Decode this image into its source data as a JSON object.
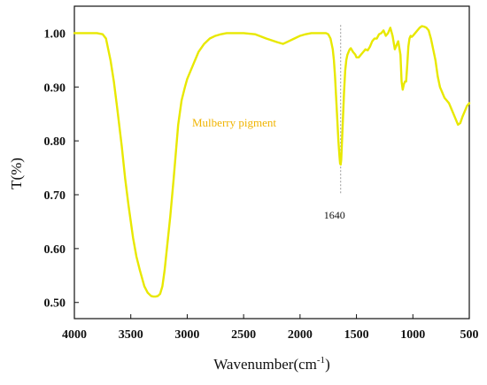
{
  "chart_data": {
    "type": "line",
    "title": "",
    "xlabel": "Wavenumber(cm",
    "xlabel_sup": "-1",
    "xlabel_tail": ")",
    "ylabel": "T(%)",
    "xlim": [
      4000,
      500
    ],
    "ylim": [
      0.47,
      1.05
    ],
    "x_reversed": true,
    "grid": false,
    "x_ticks": [
      4000,
      3500,
      3000,
      2500,
      2000,
      1500,
      1000,
      500
    ],
    "x_tick_labels": [
      "4000",
      "3500",
      "3000",
      "2500",
      "2000",
      "1500",
      "1000",
      "500"
    ],
    "y_ticks": [
      0.5,
      0.6,
      0.7,
      0.8,
      0.9,
      1.0
    ],
    "y_tick_labels": [
      "0.50",
      "0.60",
      "0.70",
      "0.80",
      "0.90",
      "1.00"
    ],
    "series": [
      {
        "name": "Mulberry pigment",
        "color": "#e8e800",
        "label_color": "#f0b400",
        "x": [
          4000,
          3900,
          3800,
          3750,
          3720,
          3700,
          3680,
          3650,
          3620,
          3580,
          3550,
          3520,
          3500,
          3480,
          3450,
          3420,
          3400,
          3380,
          3350,
          3320,
          3300,
          3280,
          3260,
          3240,
          3220,
          3200,
          3180,
          3150,
          3120,
          3100,
          3080,
          3050,
          3020,
          3000,
          2950,
          2900,
          2850,
          2800,
          2750,
          2700,
          2650,
          2600,
          2500,
          2400,
          2300,
          2200,
          2150,
          2100,
          2050,
          2000,
          1950,
          1900,
          1850,
          1800,
          1770,
          1750,
          1730,
          1710,
          1700,
          1690,
          1680,
          1670,
          1660,
          1650,
          1645,
          1640,
          1635,
          1630,
          1620,
          1610,
          1600,
          1590,
          1580,
          1570,
          1560,
          1550,
          1530,
          1510,
          1500,
          1480,
          1460,
          1440,
          1420,
          1400,
          1380,
          1360,
          1340,
          1320,
          1300,
          1280,
          1260,
          1240,
          1220,
          1200,
          1180,
          1160,
          1150,
          1130,
          1110,
          1100,
          1090,
          1080,
          1070,
          1060,
          1050,
          1040,
          1030,
          1020,
          1010,
          1000,
          980,
          960,
          940,
          920,
          900,
          880,
          860,
          840,
          820,
          800,
          780,
          760,
          740,
          720,
          700,
          680,
          660,
          640,
          620,
          600,
          580,
          560,
          540,
          520,
          500
        ],
        "y": [
          1.0,
          1.0,
          1.0,
          0.998,
          0.99,
          0.97,
          0.95,
          0.91,
          0.86,
          0.79,
          0.73,
          0.68,
          0.65,
          0.62,
          0.585,
          0.56,
          0.545,
          0.53,
          0.518,
          0.512,
          0.511,
          0.511,
          0.512,
          0.516,
          0.53,
          0.56,
          0.6,
          0.66,
          0.73,
          0.78,
          0.83,
          0.875,
          0.9,
          0.915,
          0.94,
          0.965,
          0.98,
          0.99,
          0.995,
          0.998,
          1.0,
          1.0,
          1.0,
          0.998,
          0.99,
          0.983,
          0.98,
          0.985,
          0.99,
          0.995,
          0.998,
          1.0,
          1.0,
          1.0,
          1.0,
          0.998,
          0.99,
          0.97,
          0.95,
          0.92,
          0.88,
          0.84,
          0.8,
          0.77,
          0.758,
          0.756,
          0.765,
          0.79,
          0.84,
          0.89,
          0.93,
          0.95,
          0.96,
          0.965,
          0.97,
          0.972,
          0.965,
          0.96,
          0.955,
          0.955,
          0.96,
          0.965,
          0.97,
          0.968,
          0.975,
          0.985,
          0.99,
          0.99,
          0.998,
          1.0,
          1.005,
          0.995,
          1.0,
          1.01,
          0.995,
          0.97,
          0.975,
          0.985,
          0.96,
          0.91,
          0.895,
          0.905,
          0.91,
          0.91,
          0.94,
          0.975,
          0.99,
          0.995,
          0.993,
          0.995,
          1.0,
          1.005,
          1.01,
          1.013,
          1.012,
          1.01,
          1.005,
          0.99,
          0.97,
          0.95,
          0.92,
          0.9,
          0.89,
          0.88,
          0.875,
          0.87,
          0.86,
          0.85,
          0.84,
          0.83,
          0.833,
          0.845,
          0.855,
          0.865,
          0.87
        ]
      }
    ],
    "annotations": [
      {
        "text": "1640",
        "x": 1640,
        "type": "vline",
        "y_from": 0.7,
        "y_to": 1.015
      }
    ]
  }
}
